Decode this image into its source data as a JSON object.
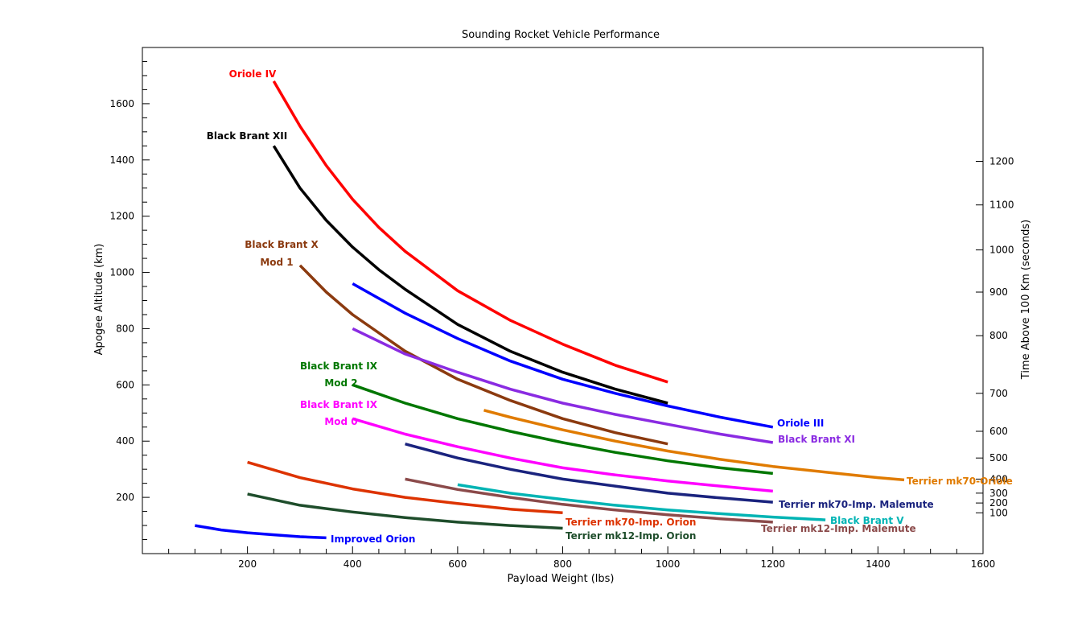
{
  "chart_data": {
    "type": "line",
    "title": "Sounding Rocket Vehicle Performance",
    "xlabel": "Payload Weight (lbs)",
    "ylabel": "Apogee Altitude (km)",
    "y2label": "Time Above 100 Km (seconds)",
    "xlim": [
      0,
      1600
    ],
    "ylim": [
      0,
      1800
    ],
    "xticks": [
      "200",
      "400",
      "600",
      "800",
      "1000",
      "1200",
      "1400",
      "1600"
    ],
    "yticks": [
      "200",
      "400",
      "600",
      "800",
      "1000",
      "1200",
      "1400",
      "1600"
    ],
    "y2ticks": [
      "100",
      "200",
      "300",
      "400",
      "500",
      "600",
      "700",
      "800",
      "900",
      "1000",
      "1100",
      "1200"
    ],
    "y2tick_positions_km": [
      145,
      180,
      215,
      265,
      340,
      435,
      570,
      775,
      930,
      1080,
      1240,
      1395
    ],
    "grid": false,
    "legend": "none",
    "series": [
      {
        "name": "Oriole IV",
        "color": "#ff0000",
        "labels": [
          "Oriole IV"
        ],
        "x": [
          250,
          300,
          350,
          400,
          450,
          500,
          600,
          700,
          800,
          900,
          1000
        ],
        "y": [
          1680,
          1520,
          1380,
          1260,
          1160,
          1075,
          935,
          830,
          745,
          670,
          610
        ]
      },
      {
        "name": "Black Brant XII",
        "color": "#000000",
        "labels": [
          "Black Brant XII"
        ],
        "x": [
          250,
          300,
          350,
          400,
          450,
          500,
          600,
          700,
          800,
          900,
          1000
        ],
        "y": [
          1450,
          1300,
          1185,
          1090,
          1010,
          940,
          815,
          720,
          645,
          585,
          535
        ]
      },
      {
        "name": "Black Brant X Mod 1",
        "color": "#8b3a0f",
        "labels": [
          "Black Brant X",
          "Mod 1"
        ],
        "x": [
          300,
          350,
          400,
          500,
          600,
          700,
          800,
          900,
          1000
        ],
        "y": [
          1025,
          930,
          850,
          720,
          620,
          545,
          480,
          430,
          390
        ]
      },
      {
        "name": "Oriole III",
        "color": "#0000ff",
        "labels": [
          "Oriole III"
        ],
        "x": [
          400,
          500,
          600,
          700,
          800,
          900,
          1000,
          1100,
          1200
        ],
        "y": [
          960,
          855,
          765,
          685,
          620,
          570,
          525,
          485,
          450
        ]
      },
      {
        "name": "Black Brant XI",
        "color": "#8a2be2",
        "labels": [
          "Black Brant XI"
        ],
        "x": [
          400,
          500,
          600,
          700,
          800,
          900,
          1000,
          1100,
          1200
        ],
        "y": [
          800,
          710,
          645,
          585,
          535,
          495,
          460,
          425,
          395
        ]
      },
      {
        "name": "Black Brant IX Mod 2",
        "color": "#007700",
        "labels": [
          "Black Brant IX",
          "Mod 2"
        ],
        "x": [
          400,
          500,
          600,
          700,
          800,
          900,
          1000,
          1100,
          1200
        ],
        "y": [
          600,
          535,
          480,
          435,
          395,
          360,
          330,
          305,
          285
        ]
      },
      {
        "name": "Terrier mk70-Oriole",
        "color": "#e07b00",
        "labels": [
          "Terrier mk70-Oriole"
        ],
        "x": [
          650,
          700,
          800,
          900,
          1000,
          1100,
          1200,
          1300,
          1400,
          1450
        ],
        "y": [
          510,
          485,
          440,
          400,
          365,
          335,
          310,
          290,
          270,
          262
        ]
      },
      {
        "name": "Black Brant IX Mod 0",
        "color": "#ff00ff",
        "labels": [
          "Black Brant IX",
          "Mod 0"
        ],
        "x": [
          400,
          500,
          600,
          700,
          800,
          900,
          1000,
          1100,
          1200
        ],
        "y": [
          480,
          425,
          380,
          340,
          305,
          280,
          258,
          240,
          222
        ]
      },
      {
        "name": "Terrier mk70-Imp. Malemute",
        "color": "#1a237e",
        "labels": [
          "Terrier mk70-Imp. Malemute"
        ],
        "x": [
          500,
          600,
          700,
          800,
          900,
          1000,
          1100,
          1200
        ],
        "y": [
          390,
          340,
          300,
          265,
          240,
          215,
          198,
          183
        ]
      },
      {
        "name": "Black Brant V",
        "color": "#00b4b4",
        "labels": [
          "Black Brant V"
        ],
        "x": [
          600,
          700,
          800,
          900,
          1000,
          1100,
          1200,
          1300
        ],
        "y": [
          245,
          215,
          193,
          172,
          155,
          142,
          130,
          120
        ]
      },
      {
        "name": "Terrier mk12-Imp. Malemute",
        "color": "#8b4a4a",
        "labels": [
          "Terrier mk12-Imp. Malemute"
        ],
        "x": [
          500,
          600,
          700,
          800,
          900,
          1000,
          1100,
          1200
        ],
        "y": [
          265,
          228,
          200,
          175,
          155,
          138,
          124,
          112
        ]
      },
      {
        "name": "Terrier mk70-Imp. Orion",
        "color": "#dd3300",
        "labels": [
          "Terrier mk70-Imp. Orion"
        ],
        "x": [
          200,
          300,
          400,
          500,
          600,
          700,
          800
        ],
        "y": [
          325,
          270,
          230,
          200,
          178,
          158,
          145
        ]
      },
      {
        "name": "Terrier mk12-Imp. Orion",
        "color": "#1e4d2b",
        "labels": [
          "Terrier mk12-Imp. Orion"
        ],
        "x": [
          200,
          300,
          400,
          500,
          600,
          700,
          800
        ],
        "y": [
          212,
          172,
          148,
          128,
          112,
          100,
          90
        ]
      },
      {
        "name": "Improved Orion",
        "color": "#0000ff",
        "labels": [
          "Improved Orion"
        ],
        "x": [
          100,
          150,
          200,
          250,
          300,
          350
        ],
        "y": [
          100,
          84,
          74,
          67,
          60,
          56
        ]
      }
    ]
  }
}
